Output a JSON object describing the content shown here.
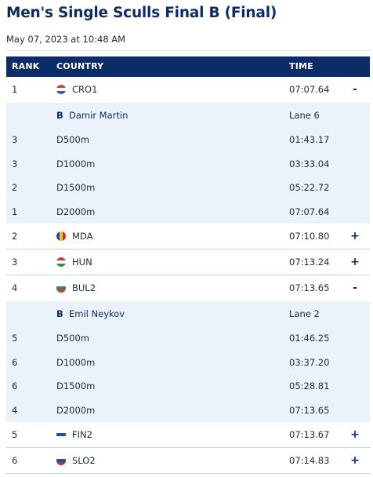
{
  "header": {
    "title": "Men's Single Sculls Final B (Final)",
    "date": "May 07, 2023 at 10:48 AM"
  },
  "table": {
    "columns": {
      "rank": "RANK",
      "country": "COUNTRY",
      "time": "TIME"
    },
    "rows": [
      {
        "rank": "1",
        "code": "CRO1",
        "time": "07:07.64",
        "toggle": "-",
        "flag": {
          "stripes": [
            "#e23b3b",
            "#ffffff",
            "#2b5fb3"
          ],
          "dir": "h"
        },
        "detail": {
          "bow": "B",
          "athlete": "Damir Martin",
          "lane": "Lane 6",
          "splits": [
            {
              "rank": "3",
              "label": "D500m",
              "time": "01:43.17"
            },
            {
              "rank": "3",
              "label": "D1000m",
              "time": "03:33.04"
            },
            {
              "rank": "2",
              "label": "D1500m",
              "time": "05:22.72"
            },
            {
              "rank": "1",
              "label": "D2000m",
              "time": "07:07.64"
            }
          ]
        }
      },
      {
        "rank": "2",
        "code": "MDA",
        "time": "07:10.80",
        "toggle": "+",
        "flag": {
          "stripes": [
            "#1f4fa8",
            "#f2c81c",
            "#d62a2a"
          ],
          "dir": "v"
        }
      },
      {
        "rank": "3",
        "code": "HUN",
        "time": "07:13.24",
        "toggle": "+",
        "flag": {
          "stripes": [
            "#d33a3a",
            "#ffffff",
            "#3e8a45"
          ],
          "dir": "h"
        }
      },
      {
        "rank": "4",
        "code": "BUL2",
        "time": "07:13.65",
        "toggle": "-",
        "flag": {
          "stripes": [
            "#ffffff",
            "#2e8b57",
            "#d23b3b"
          ],
          "dir": "h"
        },
        "detail": {
          "bow": "B",
          "athlete": "Emil Neykov",
          "lane": "Lane 2",
          "splits": [
            {
              "rank": "5",
              "label": "D500m",
              "time": "01:46.25"
            },
            {
              "rank": "6",
              "label": "D1000m",
              "time": "03:37.20"
            },
            {
              "rank": "6",
              "label": "D1500m",
              "time": "05:28.81"
            },
            {
              "rank": "4",
              "label": "D2000m",
              "time": "07:13.65"
            }
          ]
        }
      },
      {
        "rank": "5",
        "code": "FIN2",
        "time": "07:13.67",
        "toggle": "+",
        "flag": {
          "stripes": [
            "#ffffff",
            "#1f4fa8",
            "#ffffff"
          ],
          "dir": "h"
        }
      },
      {
        "rank": "6",
        "code": "SLO2",
        "time": "07:14.83",
        "toggle": "+",
        "flag": {
          "stripes": [
            "#ffffff",
            "#1f4fa8",
            "#d62a2a"
          ],
          "dir": "h"
        }
      }
    ]
  }
}
